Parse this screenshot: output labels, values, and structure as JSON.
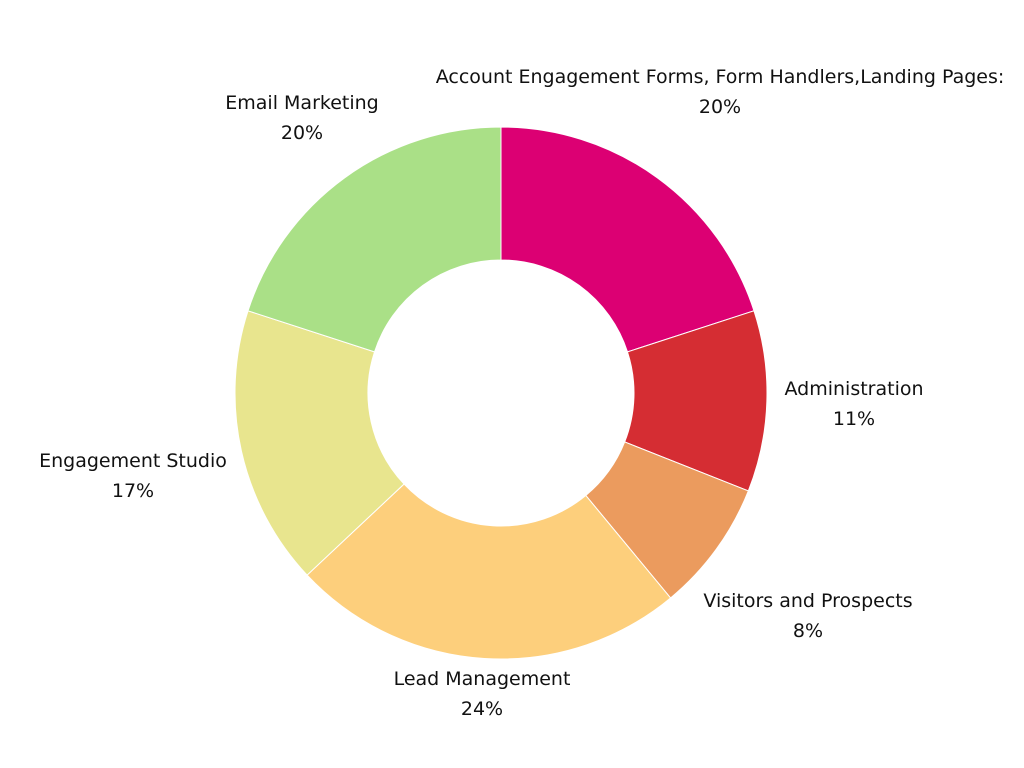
{
  "chart_data": {
    "type": "pie",
    "subtype": "donut",
    "title": "",
    "start": "top",
    "direction": "clockwise",
    "slices": [
      {
        "label": "Account Engagement Forms, Form Handlers,Landing Pages:",
        "value": 20,
        "value_label": "20%",
        "color": "#DC0073"
      },
      {
        "label": "Administration",
        "value": 11,
        "value_label": "11%",
        "color": "#D52D33"
      },
      {
        "label": "Visitors and Prospects",
        "value": 8,
        "value_label": "8%",
        "color": "#EB9B5E"
      },
      {
        "label": "Lead Management",
        "value": 24,
        "value_label": "24%",
        "color": "#FDCF7C"
      },
      {
        "label": "Engagement Studio",
        "value": 17,
        "value_label": "17%",
        "color": "#E8E58E"
      },
      {
        "label": "Email Marketing",
        "value": 20,
        "value_label": "20%",
        "color": "#AAE087"
      }
    ]
  }
}
